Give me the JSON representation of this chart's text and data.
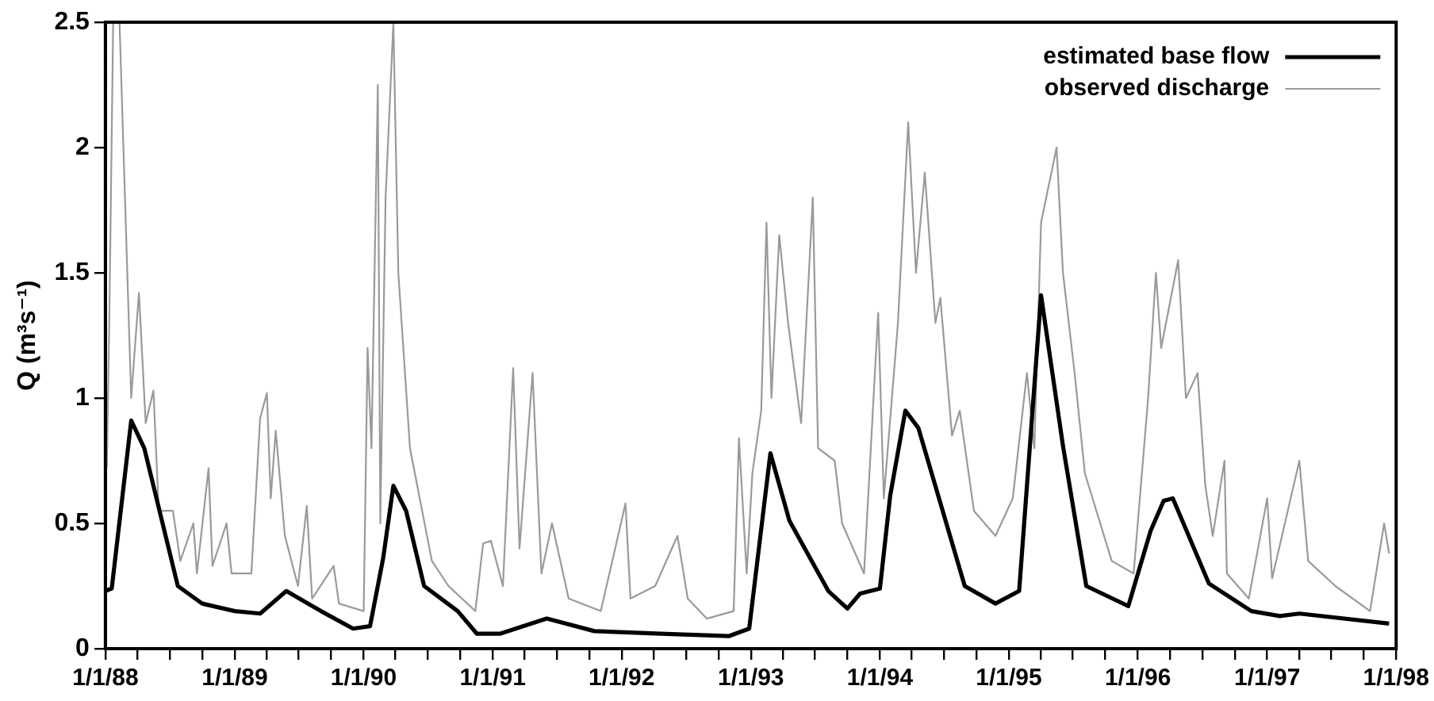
{
  "chart_data": {
    "type": "line",
    "ylabel": "Q (m³s⁻¹)",
    "xlim": [
      "1988-01-01",
      "1998-01-01"
    ],
    "xticks": [
      {
        "value": "1988-01-01",
        "label": "1/1/88"
      },
      {
        "value": "1988-04-01",
        "label": null
      },
      {
        "value": "1988-07-01",
        "label": null
      },
      {
        "value": "1988-10-01",
        "label": null
      },
      {
        "value": "1989-01-01",
        "label": "1/1/89"
      },
      {
        "value": "1989-04-01",
        "label": null
      },
      {
        "value": "1989-07-01",
        "label": null
      },
      {
        "value": "1989-10-01",
        "label": null
      },
      {
        "value": "1990-01-01",
        "label": "1/1/90"
      },
      {
        "value": "1990-04-01",
        "label": null
      },
      {
        "value": "1990-07-01",
        "label": null
      },
      {
        "value": "1990-10-01",
        "label": null
      },
      {
        "value": "1991-01-01",
        "label": "1/1/91"
      },
      {
        "value": "1991-04-01",
        "label": null
      },
      {
        "value": "1991-07-01",
        "label": null
      },
      {
        "value": "1991-10-01",
        "label": null
      },
      {
        "value": "1992-01-01",
        "label": "1/1/92"
      },
      {
        "value": "1992-04-01",
        "label": null
      },
      {
        "value": "1992-07-01",
        "label": null
      },
      {
        "value": "1992-10-01",
        "label": null
      },
      {
        "value": "1993-01-01",
        "label": "1/1/93"
      },
      {
        "value": "1993-04-01",
        "label": null
      },
      {
        "value": "1993-07-01",
        "label": null
      },
      {
        "value": "1993-10-01",
        "label": null
      },
      {
        "value": "1994-01-01",
        "label": "1/1/94"
      },
      {
        "value": "1994-04-01",
        "label": null
      },
      {
        "value": "1994-07-01",
        "label": null
      },
      {
        "value": "1994-10-01",
        "label": null
      },
      {
        "value": "1995-01-01",
        "label": "1/1/95"
      },
      {
        "value": "1995-04-01",
        "label": null
      },
      {
        "value": "1995-07-01",
        "label": null
      },
      {
        "value": "1995-10-01",
        "label": null
      },
      {
        "value": "1996-01-01",
        "label": "1/1/96"
      },
      {
        "value": "1996-04-01",
        "label": null
      },
      {
        "value": "1996-07-01",
        "label": null
      },
      {
        "value": "1996-10-01",
        "label": null
      },
      {
        "value": "1997-01-01",
        "label": "1/1/97"
      },
      {
        "value": "1997-04-01",
        "label": null
      },
      {
        "value": "1997-07-01",
        "label": null
      },
      {
        "value": "1997-10-01",
        "label": null
      },
      {
        "value": "1998-01-01",
        "label": "1/1/98"
      }
    ],
    "ylim": [
      0,
      2.5
    ],
    "yticks": [
      0,
      0.5,
      1,
      1.5,
      2,
      2.5
    ],
    "legend": "top right",
    "marker": "none",
    "series": [
      {
        "name": "estimated base flow",
        "color": "#000000",
        "x": [
          "1988-01-01",
          "1988-01-19",
          "1988-03-14",
          "1988-04-20",
          "1988-07-24",
          "1988-10-01",
          "1989-01-01",
          "1989-03-14",
          "1989-05-27",
          "1989-09-02",
          "1989-12-02",
          "1990-01-19",
          "1990-02-25",
          "1990-03-26",
          "1990-05-01",
          "1990-06-21",
          "1990-09-24",
          "1990-11-17",
          "1991-01-23",
          "1991-06-03",
          "1991-10-16",
          "1992-04-20",
          "1992-10-30",
          "1992-12-27",
          "1993-02-25",
          "1993-04-20",
          "1993-08-08",
          "1993-10-01",
          "1993-11-06",
          "1994-01-01",
          "1994-01-30",
          "1994-03-14",
          "1994-04-20",
          "1994-08-29",
          "1994-11-24",
          "1995-01-30",
          "1995-04-02",
          "1995-06-03",
          "1995-08-08",
          "1995-12-05",
          "1996-02-06",
          "1996-03-14",
          "1996-04-09",
          "1996-07-20",
          "1996-11-17",
          "1997-02-06",
          "1997-04-02",
          "1997-12-12"
        ],
        "values": [
          0.23,
          0.24,
          0.91,
          0.8,
          0.25,
          0.18,
          0.15,
          0.14,
          0.23,
          0.15,
          0.08,
          0.09,
          0.36,
          0.65,
          0.55,
          0.25,
          0.15,
          0.06,
          0.06,
          0.12,
          0.07,
          0.06,
          0.05,
          0.08,
          0.78,
          0.51,
          0.23,
          0.16,
          0.22,
          0.24,
          0.61,
          0.95,
          0.88,
          0.25,
          0.18,
          0.23,
          1.41,
          0.81,
          0.25,
          0.17,
          0.47,
          0.59,
          0.6,
          0.26,
          0.15,
          0.13,
          0.14,
          0.1
        ]
      },
      {
        "name": "observed discharge",
        "color": "#9a9a9a",
        "x": [
          "1988-01-05",
          "1988-01-12",
          "1988-01-23",
          "1988-02-10",
          "1988-03-14",
          "1988-04-05",
          "1988-04-24",
          "1988-05-16",
          "1988-05-31",
          "1988-07-10",
          "1988-07-31",
          "1988-09-06",
          "1988-09-16",
          "1988-10-19",
          "1988-10-30",
          "1988-12-09",
          "1988-12-23",
          "1989-02-17",
          "1989-03-14",
          "1989-04-02",
          "1989-04-13",
          "1989-04-27",
          "1989-05-23",
          "1989-06-29",
          "1989-07-24",
          "1989-08-08",
          "1989-10-08",
          "1989-10-23",
          "1990-01-01",
          "1990-01-12",
          "1990-01-23",
          "1990-02-10",
          "1990-02-17",
          "1990-03-04",
          "1990-03-26",
          "1990-04-09",
          "1990-05-12",
          "1990-07-13",
          "1990-08-29",
          "1990-11-13",
          "1990-12-05",
          "1990-12-27",
          "1991-01-30",
          "1991-02-28",
          "1991-03-18",
          "1991-04-24",
          "1991-05-19",
          "1991-06-18",
          "1991-08-04",
          "1991-11-03",
          "1992-01-12",
          "1992-01-26",
          "1992-04-05",
          "1992-06-07",
          "1992-07-06",
          "1992-08-29",
          "1992-11-13",
          "1992-11-28",
          "1992-12-20",
          "1993-01-05",
          "1993-01-30",
          "1993-02-14",
          "1993-02-28",
          "1993-03-22",
          "1993-04-16",
          "1993-05-23",
          "1993-06-25",
          "1993-07-10",
          "1993-08-26",
          "1993-09-16",
          "1993-11-17",
          "1993-12-27",
          "1994-01-12",
          "1994-02-21",
          "1994-03-22",
          "1994-04-13",
          "1994-05-08",
          "1994-06-07",
          "1994-06-21",
          "1994-07-24",
          "1994-08-15",
          "1994-09-24",
          "1994-11-24",
          "1995-01-12",
          "1995-02-21",
          "1995-03-14",
          "1995-04-02",
          "1995-05-16",
          "1995-06-03",
          "1995-07-06",
          "1995-08-04",
          "1995-10-19",
          "1995-12-20",
          "1996-01-30",
          "1996-02-21",
          "1996-03-07",
          "1996-04-24",
          "1996-05-16",
          "1996-06-18",
          "1996-07-10",
          "1996-07-31",
          "1996-09-02",
          "1996-09-09",
          "1996-11-10",
          "1997-01-01",
          "1997-01-15",
          "1997-04-02",
          "1997-04-27",
          "1997-07-13",
          "1997-10-19",
          "1997-11-28",
          "1997-12-12"
        ],
        "values": [
          0.72,
          1.3,
          2.5,
          2.5,
          1.0,
          1.42,
          0.9,
          1.03,
          0.55,
          0.55,
          0.35,
          0.5,
          0.3,
          0.72,
          0.33,
          0.5,
          0.3,
          0.3,
          0.92,
          1.02,
          0.6,
          0.87,
          0.45,
          0.25,
          0.57,
          0.2,
          0.33,
          0.18,
          0.15,
          1.2,
          0.8,
          2.25,
          0.5,
          1.8,
          2.5,
          1.5,
          0.8,
          0.35,
          0.25,
          0.15,
          0.42,
          0.43,
          0.25,
          1.12,
          0.4,
          1.1,
          0.3,
          0.5,
          0.2,
          0.15,
          0.58,
          0.2,
          0.25,
          0.45,
          0.2,
          0.12,
          0.15,
          0.84,
          0.3,
          0.7,
          0.95,
          1.7,
          1.0,
          1.65,
          1.3,
          0.9,
          1.8,
          0.8,
          0.75,
          0.5,
          0.3,
          1.34,
          0.6,
          1.3,
          2.1,
          1.5,
          1.9,
          1.3,
          1.4,
          0.85,
          0.95,
          0.55,
          0.45,
          0.6,
          1.1,
          0.8,
          1.7,
          2.0,
          1.5,
          1.1,
          0.7,
          0.35,
          0.3,
          1.0,
          1.5,
          1.2,
          1.55,
          1.0,
          1.1,
          0.65,
          0.45,
          0.75,
          0.3,
          0.2,
          0.6,
          0.28,
          0.75,
          0.35,
          0.25,
          0.15,
          0.5,
          0.38
        ]
      }
    ]
  }
}
